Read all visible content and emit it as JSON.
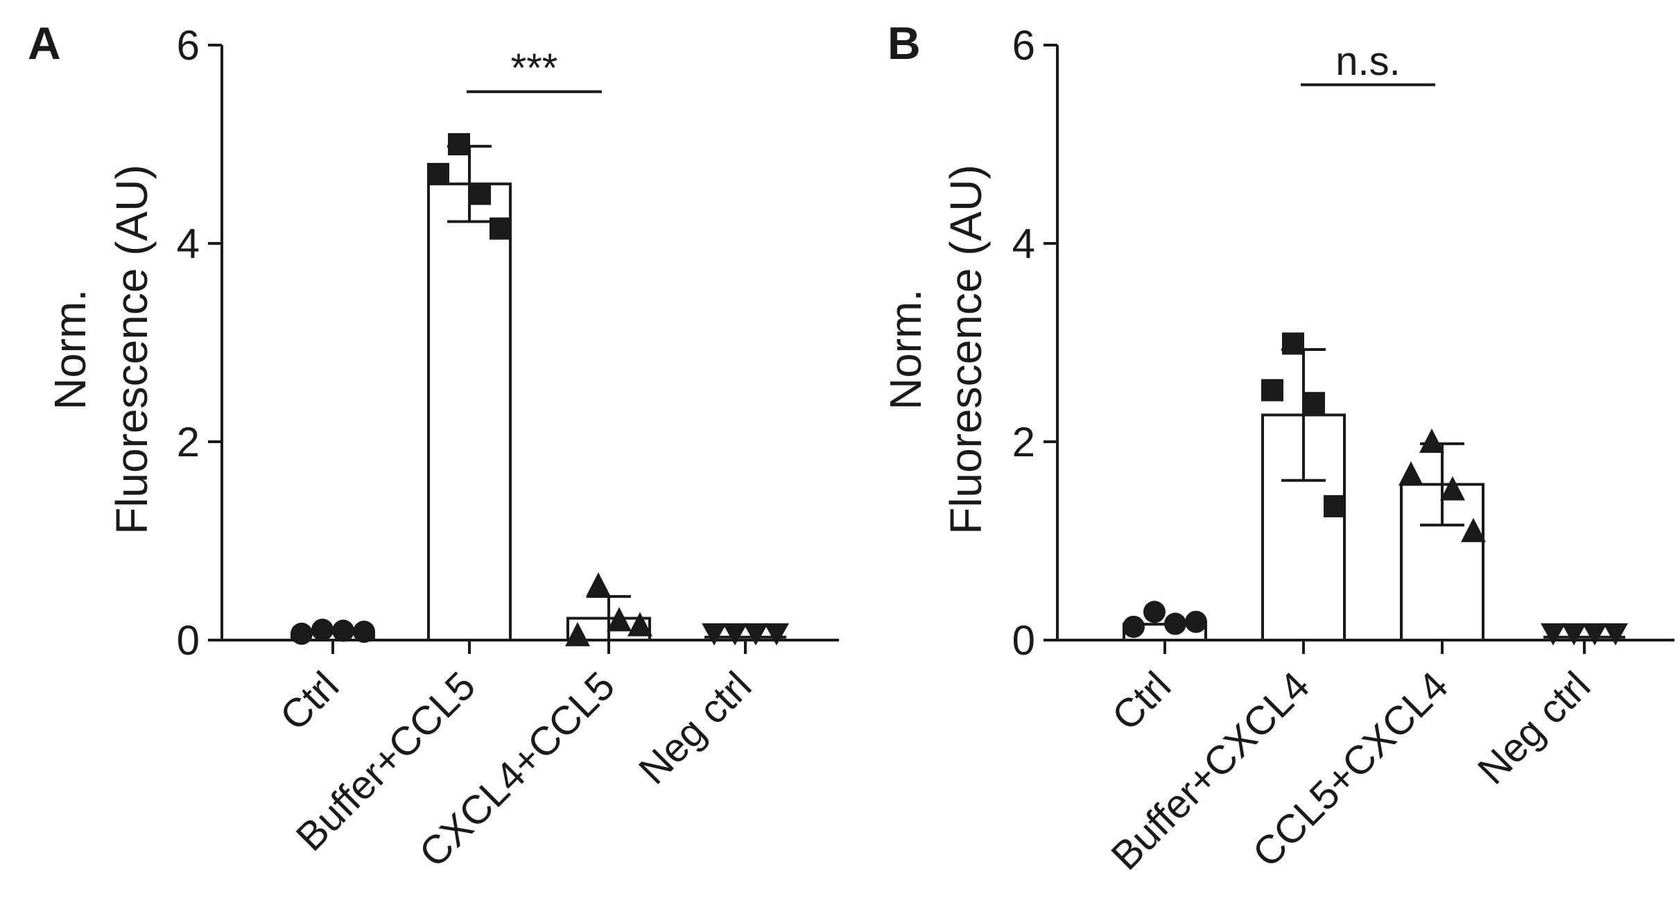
{
  "chart_data": [
    {
      "panel": "A",
      "type": "bar",
      "ylabel_line1": "Norm.",
      "ylabel_line2": "Fluorescence (AU)",
      "ylim": [
        0,
        6
      ],
      "yticks": [
        0,
        2,
        4,
        6
      ],
      "ytick_labels": [
        "0",
        "2",
        "4",
        "6"
      ],
      "categories": [
        "Ctrl",
        "Buffer+CCL5",
        "CXCL4+CCL5",
        "Neg ctrl"
      ],
      "bars": [
        {
          "mean": 0.07,
          "sd": 0.0,
          "marker": "circle",
          "points": [
            0.05,
            0.09,
            0.08,
            0.07
          ]
        },
        {
          "mean": 4.6,
          "sd": 0.38,
          "marker": "square",
          "points": [
            4.7,
            5.0,
            4.5,
            4.15
          ]
        },
        {
          "mean": 0.22,
          "sd": 0.22,
          "marker": "triangle-up",
          "points": [
            0.05,
            0.55,
            0.2,
            0.15
          ]
        },
        {
          "mean": 0.03,
          "sd": 0.0,
          "marker": "triangle-down",
          "points": [
            0.03,
            0.03,
            0.03,
            0.03
          ]
        }
      ],
      "significance": {
        "from": 1,
        "to": 2,
        "y": 5.53,
        "label": "***"
      }
    },
    {
      "panel": "B",
      "type": "bar",
      "ylabel_line1": "Norm.",
      "ylabel_line2": "Fluorescence (AU)",
      "ylim": [
        0,
        6
      ],
      "yticks": [
        0,
        2,
        4,
        6
      ],
      "ytick_labels": [
        "0",
        "2",
        "4",
        "6"
      ],
      "categories": [
        "Ctrl",
        "Buffer+CXCL4",
        "CCL5+CXCL4",
        "Neg ctrl"
      ],
      "bars": [
        {
          "mean": 0.16,
          "sd": 0.0,
          "marker": "circle",
          "points": [
            0.12,
            0.27,
            0.15,
            0.17
          ]
        },
        {
          "mean": 2.27,
          "sd": 0.66,
          "marker": "square",
          "points": [
            2.52,
            2.99,
            2.39,
            1.35
          ]
        },
        {
          "mean": 1.57,
          "sd": 0.41,
          "marker": "triangle-up",
          "points": [
            1.67,
            2.0,
            1.52,
            1.1
          ]
        },
        {
          "mean": 0.03,
          "sd": 0.0,
          "marker": "triangle-down",
          "points": [
            0.03,
            0.03,
            0.03,
            0.03
          ]
        }
      ],
      "significance": {
        "from": 1,
        "to": 2,
        "y": 5.6,
        "label": "n.s."
      }
    }
  ]
}
